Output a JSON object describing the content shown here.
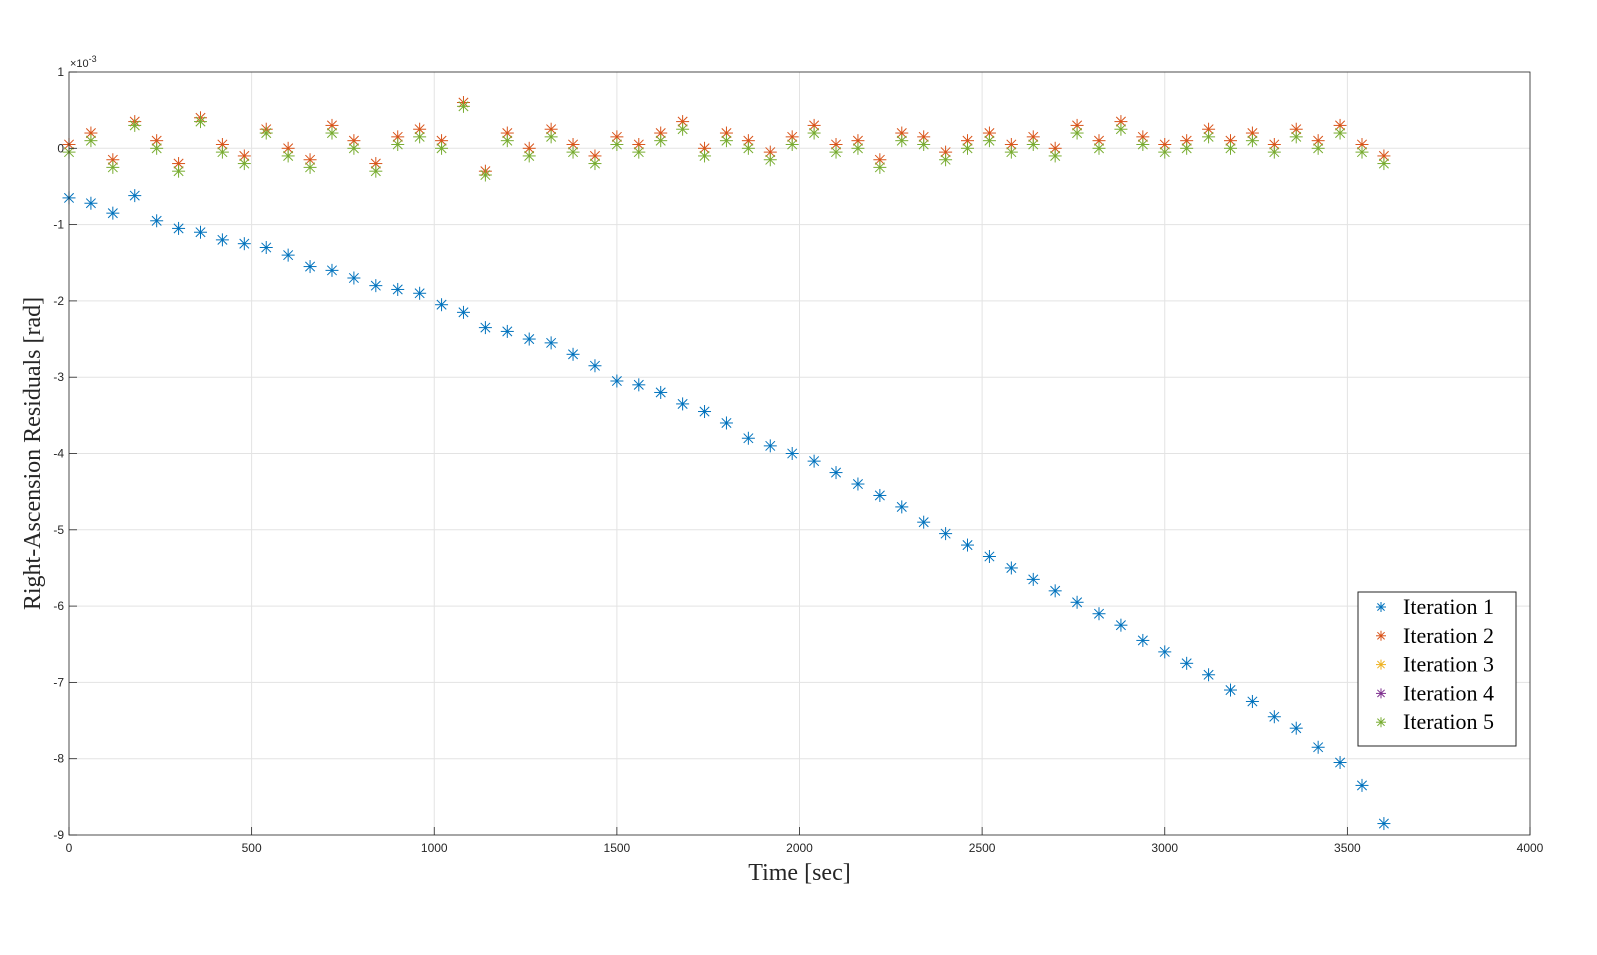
{
  "chart_data": {
    "type": "scatter",
    "xlabel": "Time [sec]",
    "ylabel": "Right-Ascension Residuals [rad]",
    "y_exponent_label": "×10-3",
    "xlim": [
      0,
      4000
    ],
    "ylim": [
      -9,
      1
    ],
    "xticks": [
      0,
      500,
      1000,
      1500,
      2000,
      2500,
      3000,
      3500,
      4000
    ],
    "yticks": [
      1,
      0,
      -1,
      -2,
      -3,
      -4,
      -5,
      -6,
      -7,
      -8,
      -9
    ],
    "xtick_labels": [
      "0",
      "500",
      "1000",
      "1500",
      "2000",
      "2500",
      "3000",
      "3500",
      "4000"
    ],
    "ytick_labels": [
      "1",
      "0",
      "-1",
      "-2",
      "-3",
      "-4",
      "-5",
      "-6",
      "-7",
      "-8",
      "-9"
    ],
    "grid": true,
    "legend_position": "lower-right",
    "marker": "asterisk",
    "series": [
      {
        "name": "Iteration 1",
        "color": "#0072BD",
        "x": [
          0,
          60,
          120,
          180,
          240,
          300,
          360,
          420,
          480,
          540,
          600,
          660,
          720,
          780,
          840,
          900,
          960,
          1020,
          1080,
          1140,
          1200,
          1260,
          1320,
          1380,
          1440,
          1500,
          1560,
          1620,
          1680,
          1740,
          1800,
          1860,
          1920,
          1980,
          2040,
          2100,
          2160,
          2220,
          2280,
          2340,
          2400,
          2460,
          2520,
          2580,
          2640,
          2700,
          2760,
          2820,
          2880,
          2940,
          3000,
          3060,
          3120,
          3180,
          3240,
          3300,
          3360,
          3420,
          3480,
          3540,
          3600
        ],
        "y": [
          -0.65,
          -0.72,
          -0.85,
          -0.62,
          -0.95,
          -1.05,
          -1.1,
          -1.2,
          -1.25,
          -1.3,
          -1.4,
          -1.55,
          -1.6,
          -1.7,
          -1.8,
          -1.85,
          -1.9,
          -2.05,
          -2.15,
          -2.35,
          -2.4,
          -2.5,
          -2.55,
          -2.7,
          -2.85,
          -3.05,
          -3.1,
          -3.2,
          -3.35,
          -3.45,
          -3.6,
          -3.8,
          -3.9,
          -4.0,
          -4.1,
          -4.25,
          -4.4,
          -4.55,
          -4.7,
          -4.9,
          -5.05,
          -5.2,
          -5.35,
          -5.5,
          -5.65,
          -5.8,
          -5.95,
          -6.1,
          -6.25,
          -6.45,
          -6.6,
          -6.75,
          -6.9,
          -7.1,
          -7.25,
          -7.45,
          -7.6,
          -7.85,
          -8.05,
          -8.35,
          -8.85
        ]
      },
      {
        "name": "Iteration 2",
        "color": "#D95319",
        "x": [
          0,
          60,
          120,
          180,
          240,
          300,
          360,
          420,
          480,
          540,
          600,
          660,
          720,
          780,
          840,
          900,
          960,
          1020,
          1080,
          1140,
          1200,
          1260,
          1320,
          1380,
          1440,
          1500,
          1560,
          1620,
          1680,
          1740,
          1800,
          1860,
          1920,
          1980,
          2040,
          2100,
          2160,
          2220,
          2280,
          2340,
          2400,
          2460,
          2520,
          2580,
          2640,
          2700,
          2760,
          2820,
          2880,
          2940,
          3000,
          3060,
          3120,
          3180,
          3240,
          3300,
          3360,
          3420,
          3480,
          3540,
          3600
        ],
        "y": [
          0.05,
          0.2,
          -0.15,
          0.35,
          0.1,
          -0.2,
          0.4,
          0.05,
          -0.1,
          0.25,
          0.0,
          -0.15,
          0.3,
          0.1,
          -0.2,
          0.15,
          0.25,
          0.1,
          0.6,
          -0.3,
          0.2,
          0.0,
          0.25,
          0.05,
          -0.1,
          0.15,
          0.05,
          0.2,
          0.35,
          0.0,
          0.2,
          0.1,
          -0.05,
          0.15,
          0.3,
          0.05,
          0.1,
          -0.15,
          0.2,
          0.15,
          -0.05,
          0.1,
          0.2,
          0.05,
          0.15,
          0.0,
          0.3,
          0.1,
          0.35,
          0.15,
          0.05,
          0.1,
          0.25,
          0.1,
          0.2,
          0.05,
          0.25,
          0.1,
          0.3,
          0.05,
          -0.1
        ]
      },
      {
        "name": "Iteration 3",
        "color": "#EDB120",
        "x": [],
        "y": []
      },
      {
        "name": "Iteration 4",
        "color": "#7E2F8E",
        "x": [],
        "y": []
      },
      {
        "name": "Iteration 5",
        "color": "#77AC30",
        "x": [
          0,
          60,
          120,
          180,
          240,
          300,
          360,
          420,
          480,
          540,
          600,
          660,
          720,
          780,
          840,
          900,
          960,
          1020,
          1080,
          1140,
          1200,
          1260,
          1320,
          1380,
          1440,
          1500,
          1560,
          1620,
          1680,
          1740,
          1800,
          1860,
          1920,
          1980,
          2040,
          2100,
          2160,
          2220,
          2280,
          2340,
          2400,
          2460,
          2520,
          2580,
          2640,
          2700,
          2760,
          2820,
          2880,
          2940,
          3000,
          3060,
          3120,
          3180,
          3240,
          3300,
          3360,
          3420,
          3480,
          3540,
          3600
        ],
        "y": [
          -0.05,
          0.1,
          -0.25,
          0.3,
          0.0,
          -0.3,
          0.35,
          -0.05,
          -0.2,
          0.2,
          -0.1,
          -0.25,
          0.2,
          0.0,
          -0.3,
          0.05,
          0.15,
          0.0,
          0.55,
          -0.35,
          0.1,
          -0.1,
          0.15,
          -0.05,
          -0.2,
          0.05,
          -0.05,
          0.1,
          0.25,
          -0.1,
          0.1,
          0.0,
          -0.15,
          0.05,
          0.2,
          -0.05,
          0.0,
          -0.25,
          0.1,
          0.05,
          -0.15,
          0.0,
          0.1,
          -0.05,
          0.05,
          -0.1,
          0.2,
          0.0,
          0.25,
          0.05,
          -0.05,
          0.0,
          0.15,
          0.0,
          0.1,
          -0.05,
          0.15,
          0.0,
          0.2,
          -0.05,
          -0.2
        ]
      }
    ]
  }
}
